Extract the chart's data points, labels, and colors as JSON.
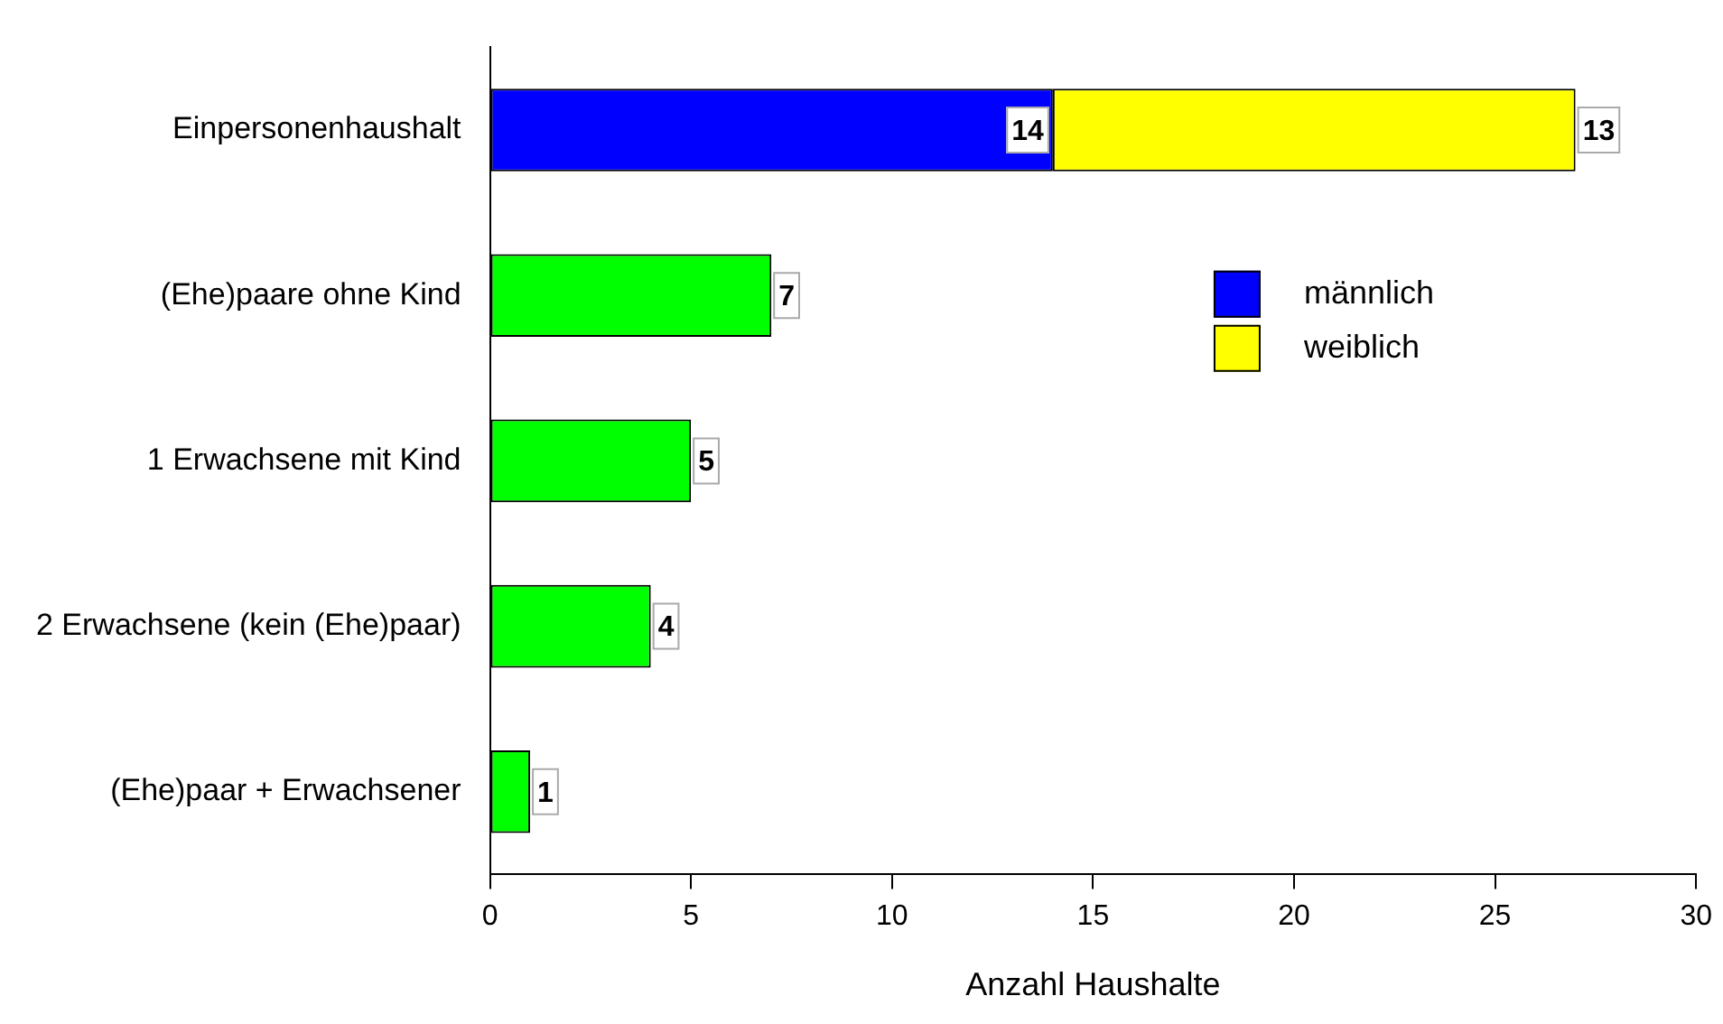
{
  "chart_data": {
    "type": "bar",
    "orientation": "horizontal",
    "stacked": true,
    "xlabel": "Anzahl Haushalte",
    "categories": [
      "Einpersonenhaushalt",
      "(Ehe)paare ohne Kind",
      "1 Erwachsene mit Kind",
      "2 Erwachsene (kein (Ehe)paar)",
      "(Ehe)paar + Erwachsener"
    ],
    "series": [
      {
        "name": "männlich",
        "color": "#0000ff",
        "values": [
          14,
          null,
          null,
          null,
          null
        ]
      },
      {
        "name": "weiblich",
        "color": "#ffff00",
        "values": [
          13,
          null,
          null,
          null,
          null
        ]
      },
      {
        "color": "#00ff00",
        "values": [
          null,
          7,
          5,
          4,
          1
        ]
      }
    ],
    "xlim": [
      0,
      30
    ],
    "xticks": [
      0,
      5,
      10,
      15,
      20,
      25,
      30
    ],
    "grid": false,
    "legend": "top right",
    "data_labels": true
  }
}
